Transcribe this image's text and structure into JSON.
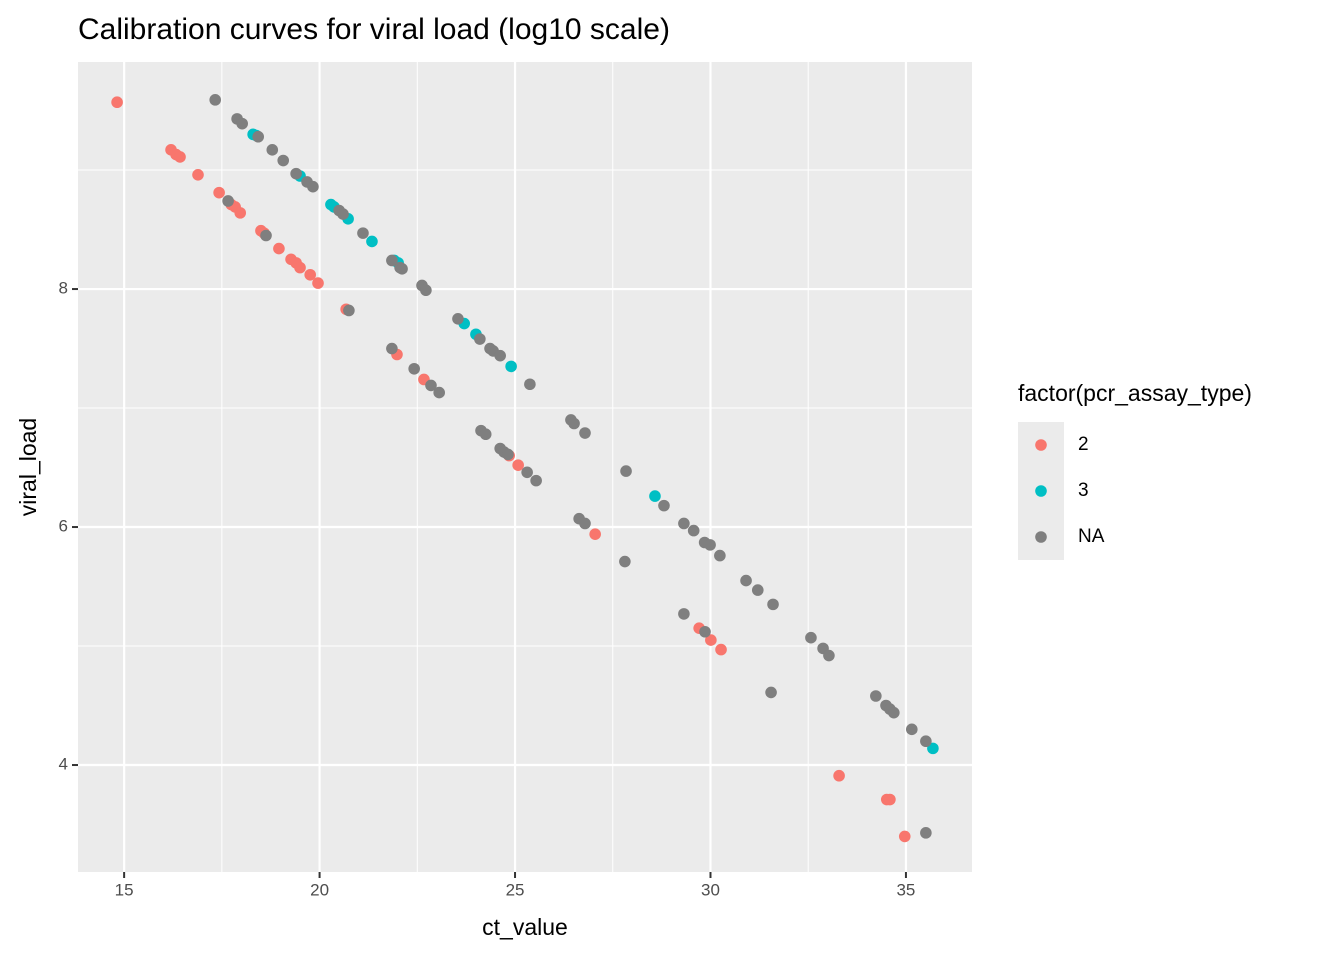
{
  "chart_data": {
    "type": "scatter",
    "title": "Calibration curves for viral load (log10 scale)",
    "x_label": "ct_value",
    "y_label": "viral_load",
    "xlim": [
      13.82,
      36.69
    ],
    "ylim": [
      3.101,
      9.908
    ],
    "xticks": [
      15,
      20,
      25,
      30,
      35
    ],
    "yticks": [
      4,
      6,
      8
    ],
    "grid": true,
    "legend_position": "right",
    "legend_title": "factor(pcr_assay_type)",
    "series": [
      {
        "name": "2",
        "color": "#F8766D",
        "x": [
          14.82,
          16.2,
          16.33,
          16.43,
          16.89,
          17.43,
          17.74,
          17.84,
          17.97,
          18.5,
          18.58,
          18.96,
          19.27,
          19.4,
          19.5,
          19.76,
          19.96,
          20.68,
          21.98,
          22.67,
          24.85,
          25.08,
          27.05,
          29.71,
          30.01,
          30.27,
          33.29,
          34.51,
          34.59,
          34.97
        ],
        "values": [
          9.57,
          9.17,
          9.13,
          9.11,
          8.96,
          8.81,
          8.71,
          8.69,
          8.64,
          8.49,
          8.47,
          8.34,
          8.25,
          8.22,
          8.18,
          8.12,
          8.05,
          7.83,
          7.45,
          7.24,
          6.6,
          6.52,
          5.94,
          5.15,
          5.05,
          4.97,
          3.91,
          3.71,
          3.71,
          3.4
        ]
      },
      {
        "name": "3",
        "color": "#00BFC4",
        "x": [
          18.3,
          18.38,
          19.5,
          20.29,
          20.37,
          20.73,
          21.34,
          21.91,
          22.01,
          23.7,
          24.0,
          24.9,
          28.58,
          35.69
        ],
        "values": [
          9.3,
          9.29,
          8.95,
          8.71,
          8.69,
          8.59,
          8.4,
          8.24,
          8.22,
          7.71,
          7.62,
          7.35,
          6.26,
          4.14
        ]
      },
      {
        "name": "NA",
        "color": "#7F7F7F",
        "x": [
          17.33,
          17.89,
          18.02,
          18.43,
          18.79,
          19.07,
          19.4,
          19.68,
          19.83,
          20.5,
          20.6,
          21.11,
          21.85,
          22.06,
          22.11,
          22.62,
          22.72,
          17.66,
          18.63,
          20.75,
          21.85,
          22.42,
          22.85,
          23.06,
          23.54,
          24.1,
          24.36,
          24.44,
          24.62,
          25.38,
          24.13,
          24.25,
          24.62,
          24.72,
          24.82,
          25.31,
          25.54,
          26.43,
          26.51,
          26.79,
          27.84,
          28.81,
          26.64,
          26.79,
          27.81,
          29.32,
          29.57,
          29.85,
          29.99,
          30.24,
          30.91,
          31.21,
          31.6,
          29.32,
          29.86,
          31.55,
          32.57,
          32.88,
          33.03,
          34.23,
          34.49,
          34.59,
          34.69,
          35.15,
          35.51,
          35.51
        ],
        "values": [
          9.59,
          9.43,
          9.39,
          9.28,
          9.17,
          9.08,
          8.97,
          8.9,
          8.86,
          8.66,
          8.63,
          8.47,
          8.24,
          8.18,
          8.17,
          8.03,
          7.99,
          8.74,
          8.45,
          7.82,
          7.5,
          7.33,
          7.19,
          7.13,
          7.75,
          7.58,
          7.5,
          7.48,
          7.44,
          7.2,
          6.81,
          6.78,
          6.66,
          6.63,
          6.61,
          6.46,
          6.39,
          6.9,
          6.87,
          6.79,
          6.47,
          6.18,
          6.07,
          6.03,
          5.71,
          6.03,
          5.97,
          5.87,
          5.85,
          5.76,
          5.55,
          5.47,
          5.35,
          5.27,
          5.12,
          4.61,
          5.07,
          4.98,
          4.92,
          4.58,
          4.5,
          4.47,
          4.44,
          4.3,
          4.2,
          3.43
        ]
      }
    ]
  }
}
